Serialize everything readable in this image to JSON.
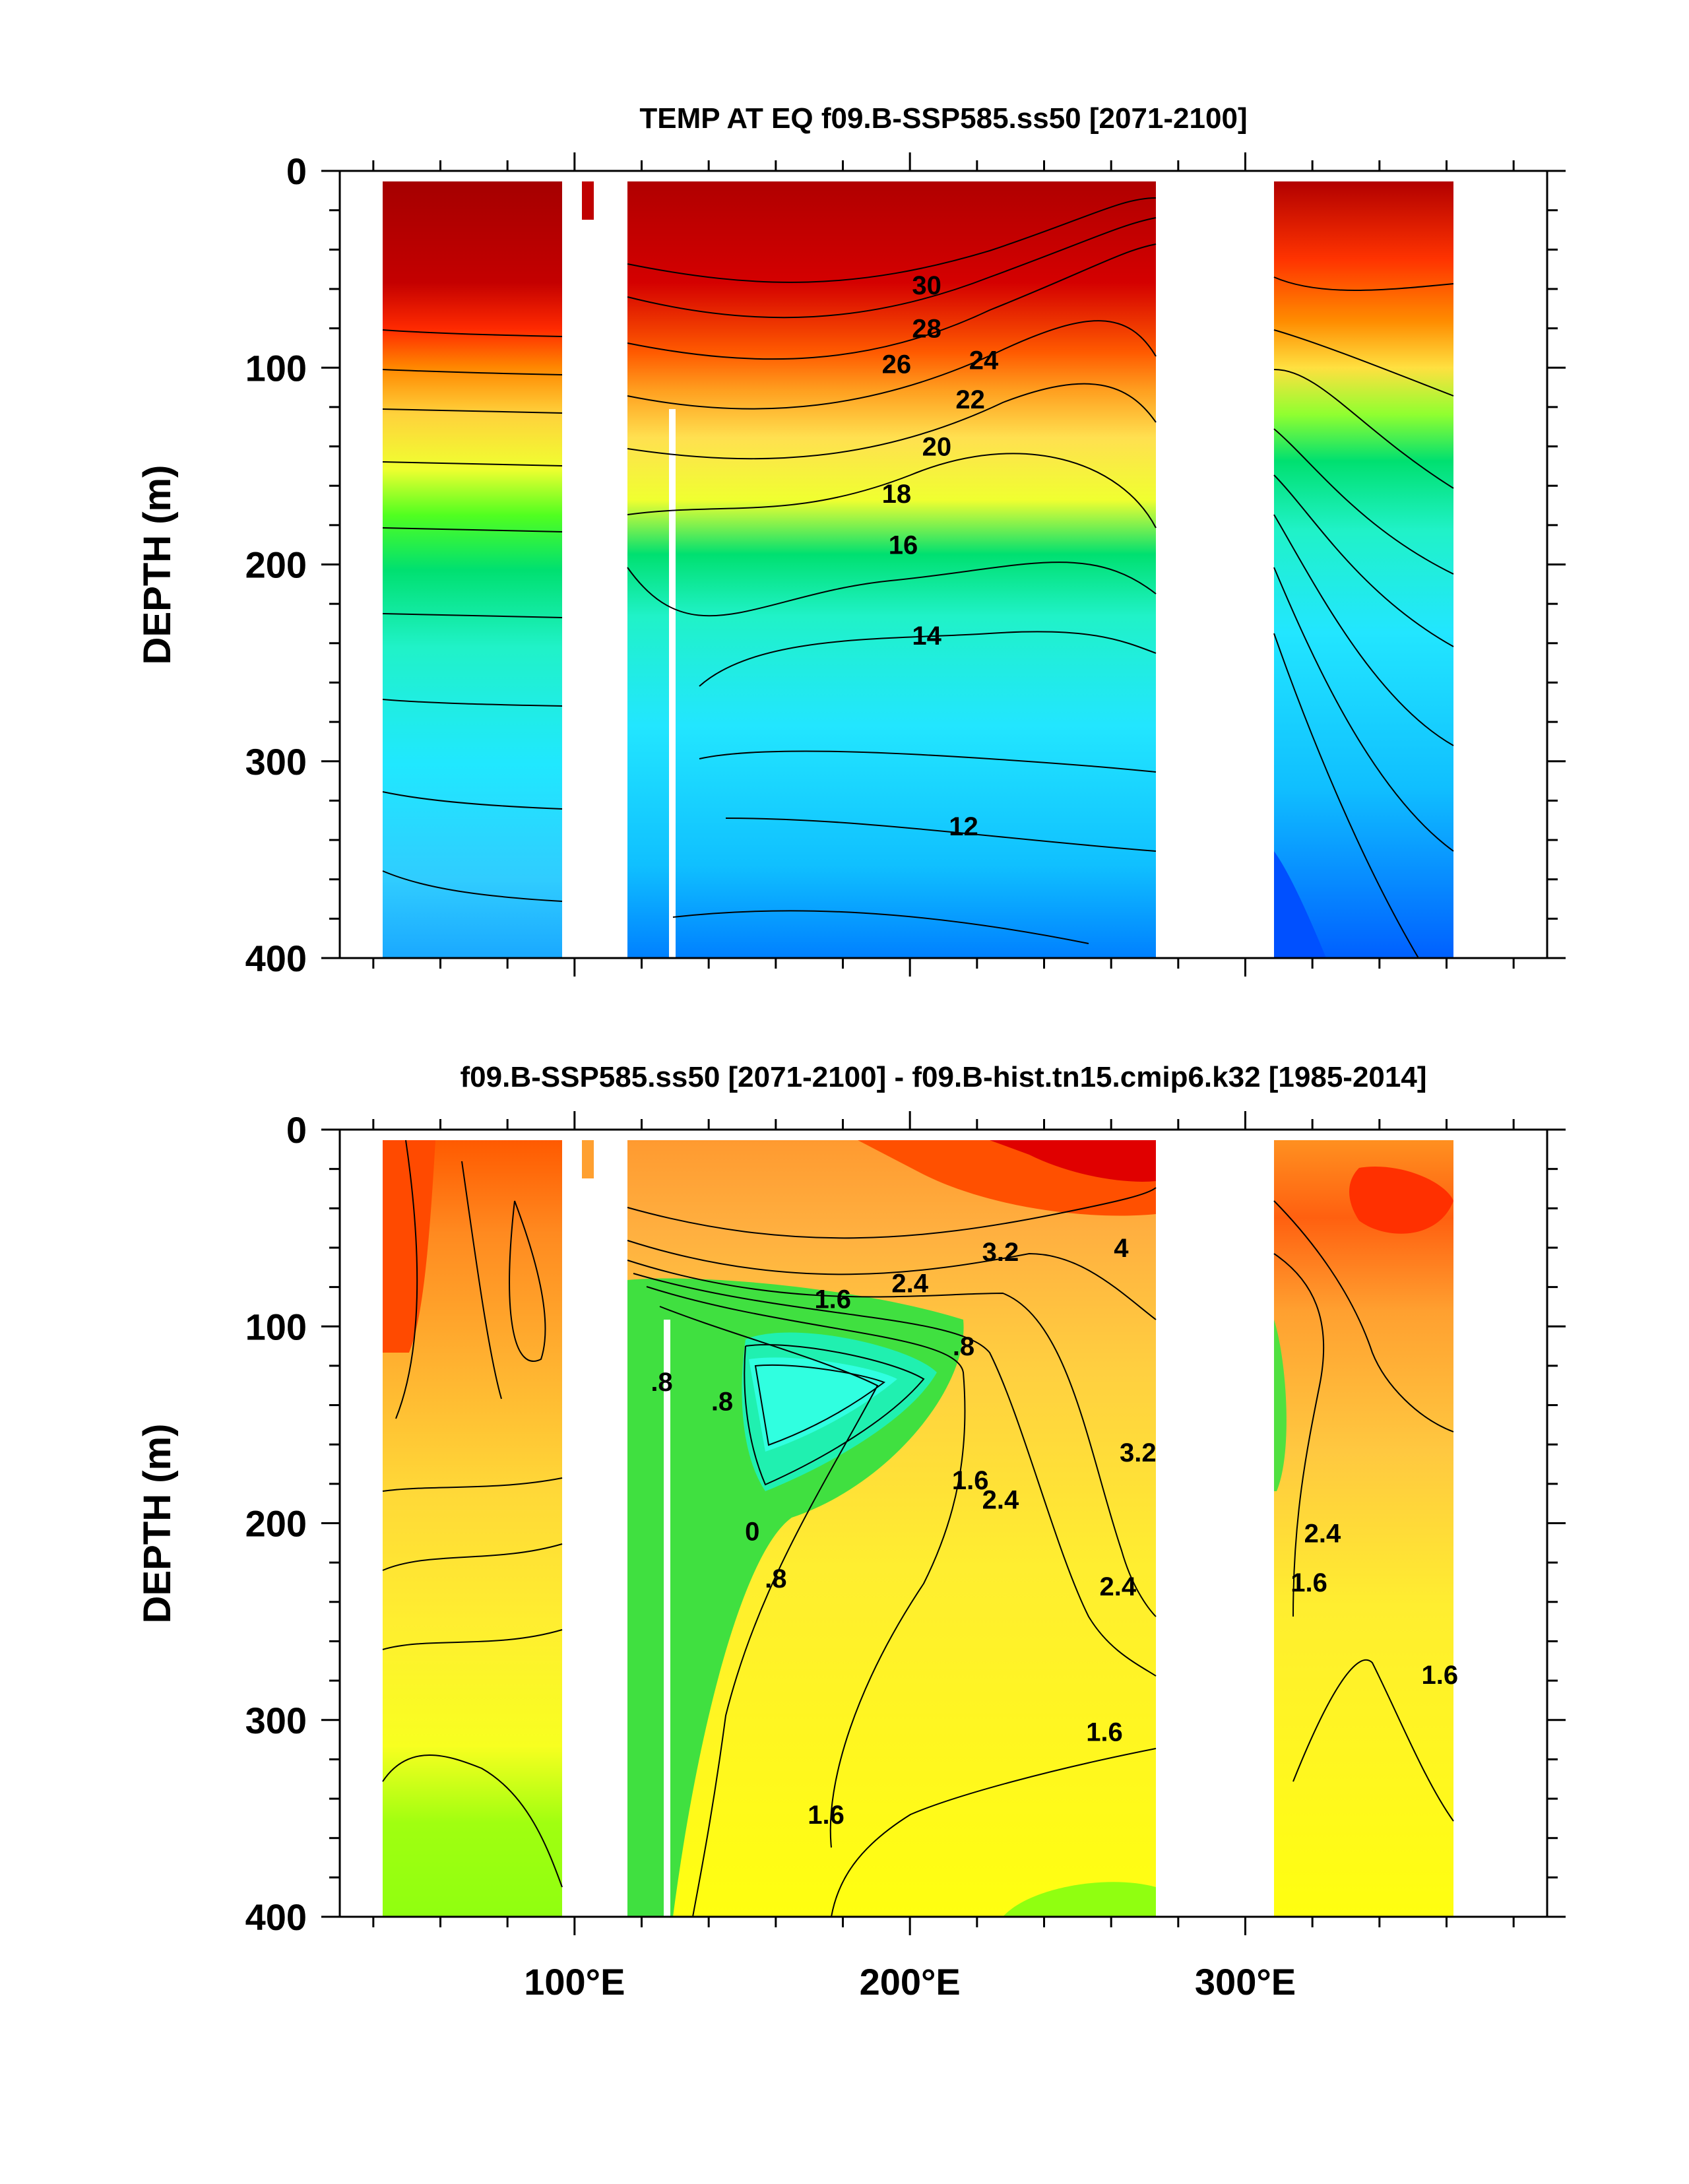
{
  "chart_data": [
    {
      "type": "heatmap",
      "title": "TEMP AT EQ f09.B-SSP585.ss50 [2071-2100]",
      "ylabel": "DEPTH (m)",
      "xlabel": "",
      "xlim": [
        30,
        390
      ],
      "ylim": [
        400,
        0
      ],
      "y_reversed": true,
      "x_ticks": [],
      "x_tick_labels": [],
      "y_ticks": [
        0,
        100,
        200,
        300,
        400
      ],
      "y_tick_labels": [
        "0",
        "100",
        "200",
        "300",
        "400"
      ],
      "contour_labels": [
        {
          "text": "30",
          "x": 205,
          "y": 58
        },
        {
          "text": "28",
          "x": 205,
          "y": 80
        },
        {
          "text": "26",
          "x": 196,
          "y": 98
        },
        {
          "text": "24",
          "x": 222,
          "y": 96
        },
        {
          "text": "22",
          "x": 218,
          "y": 116
        },
        {
          "text": "20",
          "x": 208,
          "y": 140
        },
        {
          "text": "18",
          "x": 196,
          "y": 164
        },
        {
          "text": "16",
          "x": 198,
          "y": 190
        },
        {
          "text": "14",
          "x": 205,
          "y": 236
        },
        {
          "text": "12",
          "x": 216,
          "y": 333
        }
      ],
      "gaps_longitude": [
        [
          98,
          118
        ],
        [
          278,
          314
        ]
      ]
    },
    {
      "type": "heatmap",
      "title": "f09.B-SSP585.ss50 [2071-2100] - f09.B-hist.tn15.cmip6.k32 [1985-2014]",
      "ylabel": "DEPTH (m)",
      "xlabel": "",
      "xlim": [
        30,
        390
      ],
      "ylim": [
        400,
        0
      ],
      "y_reversed": true,
      "x_ticks": [
        100,
        200,
        300
      ],
      "x_tick_labels": [
        "100°E",
        "200°E",
        "300°E"
      ],
      "y_ticks": [
        0,
        100,
        200,
        300,
        400
      ],
      "y_tick_labels": [
        "0",
        "100",
        "200",
        "300",
        "400"
      ],
      "contour_labels": [
        {
          "text": "3.2",
          "x": 227,
          "y": 62
        },
        {
          "text": "4",
          "x": 263,
          "y": 60
        },
        {
          "text": "2.4",
          "x": 200,
          "y": 78
        },
        {
          "text": "1.6",
          "x": 177,
          "y": 86
        },
        {
          "text": ".8",
          "x": 216,
          "y": 110
        },
        {
          "text": ".8",
          "x": 126,
          "y": 128
        },
        {
          "text": ".8",
          "x": 144,
          "y": 138
        },
        {
          "text": "3.2",
          "x": 268,
          "y": 164
        },
        {
          "text": "1.6",
          "x": 218,
          "y": 178
        },
        {
          "text": "2.4",
          "x": 227,
          "y": 188
        },
        {
          "text": "0",
          "x": 153,
          "y": 204
        },
        {
          "text": ".8",
          "x": 160,
          "y": 228
        },
        {
          "text": "2.4",
          "x": 262,
          "y": 232
        },
        {
          "text": "1.6",
          "x": 319,
          "y": 230
        },
        {
          "text": "2.4",
          "x": 323,
          "y": 205
        },
        {
          "text": "1.6",
          "x": 358,
          "y": 277
        },
        {
          "text": "1.6",
          "x": 258,
          "y": 306
        },
        {
          "text": "1.6",
          "x": 175,
          "y": 348
        }
      ],
      "gaps_longitude": [
        [
          98,
          118
        ],
        [
          278,
          314
        ]
      ]
    }
  ]
}
